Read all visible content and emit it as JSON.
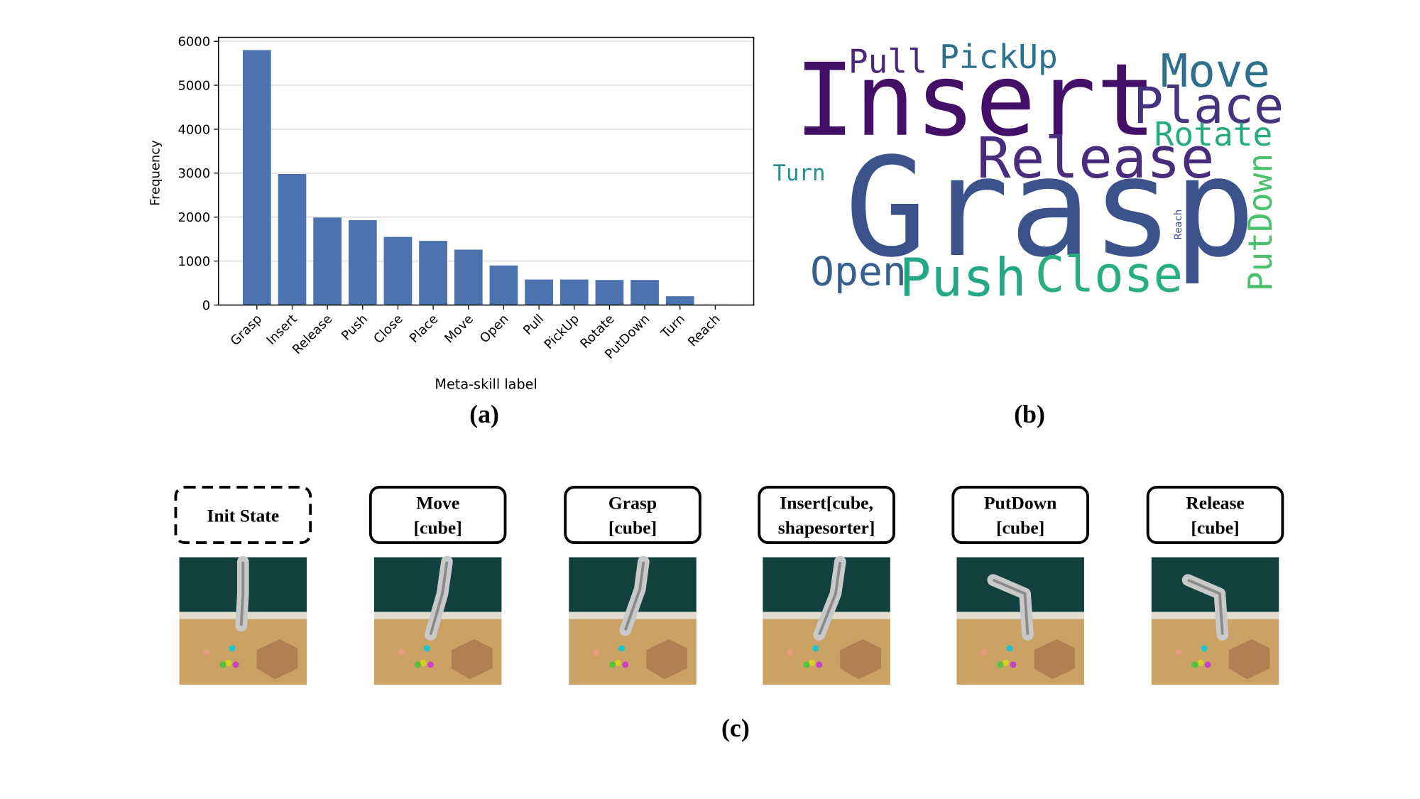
{
  "chart_data": {
    "type": "bar",
    "ylabel": "Frequency",
    "xlabel": "Meta-skill label",
    "categories": [
      "Grasp",
      "Insert",
      "Release",
      "Push",
      "Close",
      "Place",
      "Move",
      "Open",
      "Pull",
      "PickUp",
      "Rotate",
      "PutDown",
      "Turn",
      "Reach"
    ],
    "values": [
      5800,
      2980,
      1990,
      1930,
      1550,
      1460,
      1260,
      900,
      580,
      580,
      570,
      570,
      200,
      10
    ],
    "color": "#4c72b0",
    "ylim": [
      0,
      6090
    ],
    "yticks": [
      0,
      1000,
      2000,
      3000,
      4000,
      5000,
      6000
    ],
    "grid": true
  },
  "panels": {
    "a": "(a)",
    "b": "(b)",
    "c": "(c)"
  },
  "wordcloud": {
    "words": [
      "Insert",
      "Grasp",
      "Release",
      "Place",
      "Move",
      "Rotate",
      "Pull",
      "PickUp",
      "Turn",
      "Open",
      "Push",
      "Close",
      "PutDown",
      "Reach"
    ]
  },
  "steps": [
    {
      "lines": [
        "Init State"
      ]
    },
    {
      "lines": [
        "Move",
        "[cube]"
      ]
    },
    {
      "lines": [
        "Grasp",
        "[cube]"
      ]
    },
    {
      "lines": [
        "Insert[cube,",
        "shapesorter]"
      ]
    },
    {
      "lines": [
        "PutDown",
        "[cube]"
      ]
    },
    {
      "lines": [
        "Release",
        "[cube]"
      ]
    }
  ]
}
